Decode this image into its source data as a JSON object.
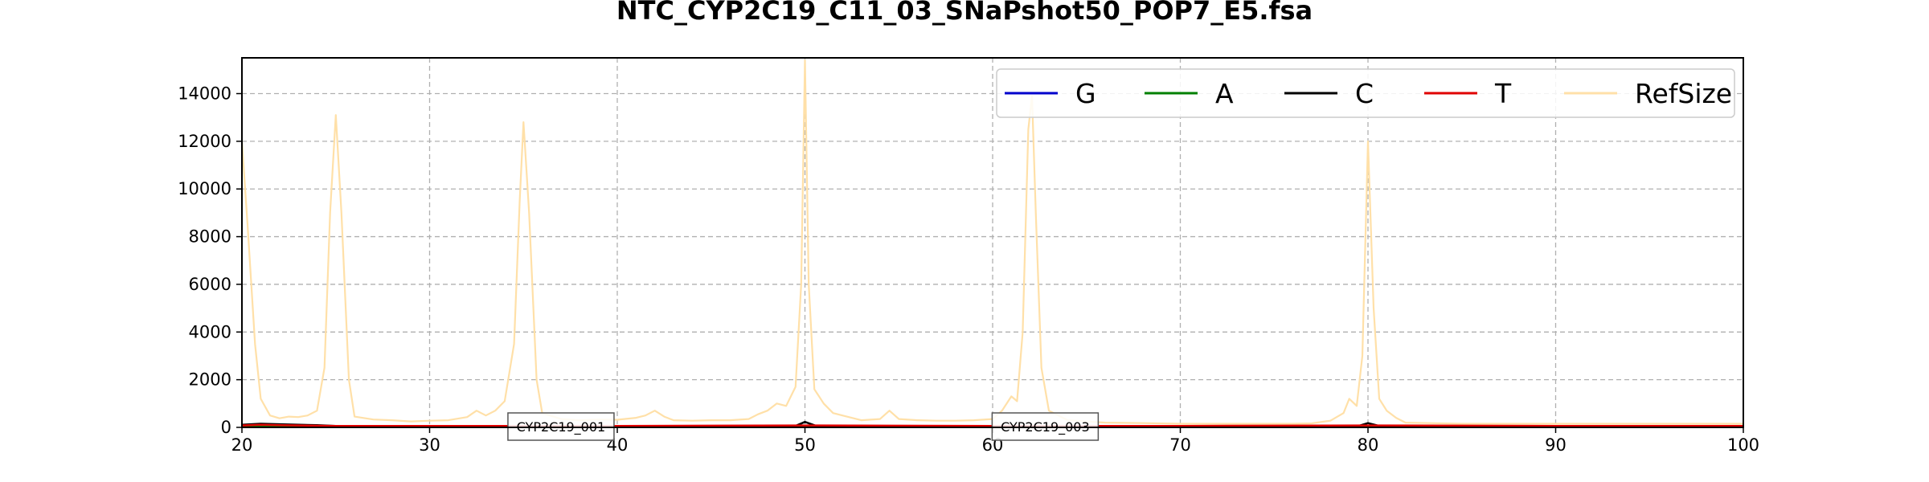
{
  "chart_data": {
    "type": "line",
    "title": "NTC_CYP2C19_C11_03_SNaPshot50_POP7_E5.fsa",
    "xlabel": "",
    "ylabel": "",
    "xlim": [
      20,
      100
    ],
    "ylim": [
      0,
      15500
    ],
    "x_ticks": [
      20,
      30,
      40,
      50,
      60,
      70,
      80,
      90,
      100
    ],
    "y_ticks": [
      0,
      2000,
      4000,
      6000,
      8000,
      10000,
      12000,
      14000
    ],
    "grid": true,
    "legend_position": "top-right",
    "series": [
      {
        "name": "G",
        "color": "#0000cc",
        "points": [
          [
            20,
            40
          ],
          [
            30,
            30
          ],
          [
            40,
            30
          ],
          [
            50,
            40
          ],
          [
            60,
            30
          ],
          [
            70,
            30
          ],
          [
            80,
            30
          ],
          [
            90,
            30
          ],
          [
            100,
            30
          ]
        ]
      },
      {
        "name": "A",
        "color": "#008000",
        "points": [
          [
            20,
            40
          ],
          [
            30,
            30
          ],
          [
            40,
            30
          ],
          [
            50,
            30
          ],
          [
            60,
            30
          ],
          [
            70,
            30
          ],
          [
            80,
            30
          ],
          [
            90,
            30
          ],
          [
            100,
            30
          ]
        ]
      },
      {
        "name": "C",
        "color": "#000000",
        "points": [
          [
            20,
            110
          ],
          [
            21,
            150
          ],
          [
            22,
            130
          ],
          [
            24,
            90
          ],
          [
            25,
            60
          ],
          [
            30,
            40
          ],
          [
            40,
            40
          ],
          [
            49.5,
            60
          ],
          [
            50,
            230
          ],
          [
            50.6,
            60
          ],
          [
            60,
            40
          ],
          [
            70,
            40
          ],
          [
            79.5,
            60
          ],
          [
            80,
            180
          ],
          [
            80.6,
            60
          ],
          [
            90,
            40
          ],
          [
            100,
            40
          ]
        ]
      },
      {
        "name": "T",
        "color": "#e00000",
        "points": [
          [
            20,
            80
          ],
          [
            21,
            110
          ],
          [
            22,
            90
          ],
          [
            25,
            60
          ],
          [
            30,
            60
          ],
          [
            40,
            60
          ],
          [
            50,
            80
          ],
          [
            60,
            60
          ],
          [
            70,
            60
          ],
          [
            80,
            80
          ],
          [
            90,
            60
          ],
          [
            100,
            60
          ]
        ]
      },
      {
        "name": "RefSize",
        "color": "#ffe0a8",
        "points": [
          [
            20,
            12000
          ],
          [
            20.3,
            8500
          ],
          [
            20.7,
            3500
          ],
          [
            21,
            1200
          ],
          [
            21.5,
            500
          ],
          [
            22,
            380
          ],
          [
            22.5,
            450
          ],
          [
            23,
            430
          ],
          [
            23.5,
            500
          ],
          [
            24,
            700
          ],
          [
            24.4,
            2500
          ],
          [
            24.7,
            9000
          ],
          [
            25,
            13100
          ],
          [
            25.3,
            9000
          ],
          [
            25.7,
            2000
          ],
          [
            26,
            450
          ],
          [
            27,
            330
          ],
          [
            28,
            300
          ],
          [
            29,
            250
          ],
          [
            30,
            280
          ],
          [
            31,
            300
          ],
          [
            32,
            430
          ],
          [
            32.5,
            700
          ],
          [
            33,
            500
          ],
          [
            33.5,
            700
          ],
          [
            34,
            1100
          ],
          [
            34.5,
            3500
          ],
          [
            34.8,
            9500
          ],
          [
            35,
            12800
          ],
          [
            35.3,
            9000
          ],
          [
            35.7,
            2000
          ],
          [
            36,
            600
          ],
          [
            37,
            350
          ],
          [
            38,
            300
          ],
          [
            39,
            330
          ],
          [
            40,
            320
          ],
          [
            41,
            400
          ],
          [
            41.5,
            500
          ],
          [
            42,
            700
          ],
          [
            42.5,
            450
          ],
          [
            43,
            300
          ],
          [
            44,
            280
          ],
          [
            45,
            300
          ],
          [
            46,
            300
          ],
          [
            47,
            350
          ],
          [
            47.5,
            550
          ],
          [
            48,
            700
          ],
          [
            48.5,
            1000
          ],
          [
            49,
            900
          ],
          [
            49.5,
            1700
          ],
          [
            49.8,
            6000
          ],
          [
            50,
            15400
          ],
          [
            50.2,
            6000
          ],
          [
            50.5,
            1600
          ],
          [
            51,
            1000
          ],
          [
            51.5,
            600
          ],
          [
            52,
            500
          ],
          [
            53,
            300
          ],
          [
            54,
            350
          ],
          [
            54.5,
            700
          ],
          [
            55,
            350
          ],
          [
            56,
            300
          ],
          [
            57,
            280
          ],
          [
            58,
            280
          ],
          [
            59,
            300
          ],
          [
            60,
            350
          ],
          [
            60.5,
            700
          ],
          [
            61,
            1300
          ],
          [
            61.3,
            1100
          ],
          [
            61.6,
            4000
          ],
          [
            61.9,
            12500
          ],
          [
            62.1,
            13900
          ],
          [
            62.3,
            9000
          ],
          [
            62.6,
            2500
          ],
          [
            63,
            700
          ],
          [
            64,
            300
          ],
          [
            65,
            250
          ],
          [
            66,
            200
          ],
          [
            68,
            180
          ],
          [
            70,
            150
          ],
          [
            72,
            150
          ],
          [
            74,
            150
          ],
          [
            76,
            150
          ],
          [
            77,
            170
          ],
          [
            78,
            280
          ],
          [
            78.7,
            600
          ],
          [
            79,
            1200
          ],
          [
            79.4,
            900
          ],
          [
            79.7,
            3000
          ],
          [
            80,
            12000
          ],
          [
            80.3,
            5000
          ],
          [
            80.6,
            1200
          ],
          [
            81,
            700
          ],
          [
            81.5,
            400
          ],
          [
            82,
            200
          ],
          [
            85,
            150
          ],
          [
            90,
            150
          ],
          [
            95,
            150
          ],
          [
            100,
            150
          ]
        ]
      }
    ],
    "annotations": [
      {
        "text": "CYP2C19_001",
        "x": 37
      },
      {
        "text": "CYP2C19_003",
        "x": 62.8
      }
    ]
  }
}
